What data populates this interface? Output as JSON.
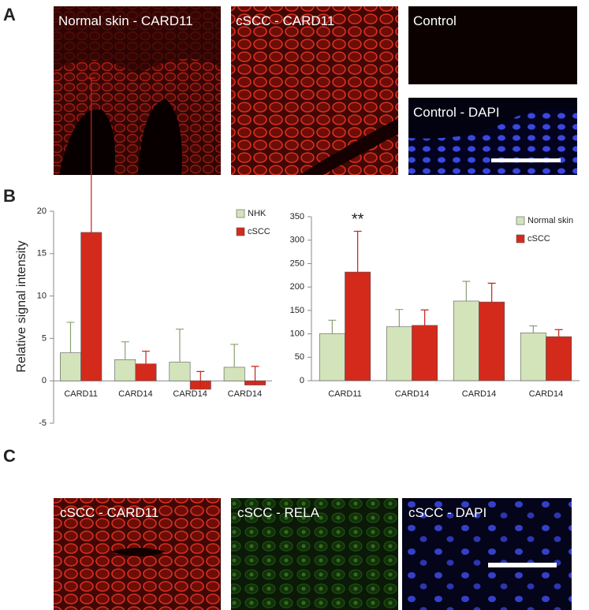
{
  "panel_labels": [
    "A",
    "B",
    "C"
  ],
  "images": [
    {
      "caption": "Normal skin - CARD11"
    },
    {
      "caption": "cSCC - CARD11"
    },
    {
      "caption": "Control"
    },
    {
      "caption": "Control - DAPI"
    },
    {
      "caption": "cSCC - CARD11"
    },
    {
      "caption": "cSCC - RELA"
    },
    {
      "caption": "cSCC - DAPI"
    }
  ],
  "chart_data": [
    {
      "type": "bar",
      "ylabel": "Relative signal intensity",
      "categories": [
        "CARD11",
        "CARD14",
        "CARD14",
        "CARD14"
      ],
      "series": [
        {
          "name": "NHK",
          "color": "#d4e4ba",
          "values": [
            3.3,
            2.5,
            2.2,
            1.6
          ],
          "errors": [
            3.6,
            2.1,
            3.9,
            2.7
          ]
        },
        {
          "name": "cSCC",
          "color": "#d42a1c",
          "values": [
            17.5,
            2,
            -1,
            -0.5
          ],
          "errors": [
            18.2,
            1.5,
            2.1,
            2.2
          ]
        }
      ],
      "ylim": [
        -5,
        20
      ],
      "yticks": [
        -5,
        0,
        5,
        10,
        15,
        20
      ]
    },
    {
      "type": "bar",
      "categories": [
        "CARD11",
        "CARD14",
        "CARD14",
        "CARD14"
      ],
      "series": [
        {
          "name": "Normal skin",
          "color": "#d4e4ba",
          "values": [
            100,
            115,
            170,
            102
          ],
          "errors": [
            29,
            37,
            42,
            15
          ]
        },
        {
          "name": "cSCC",
          "color": "#d42a1c",
          "values": [
            232,
            118,
            168,
            94
          ],
          "errors": [
            87,
            33,
            40,
            15
          ]
        }
      ],
      "annotation": "**",
      "ylim": [
        0,
        350
      ],
      "yticks": [
        0,
        50,
        100,
        150,
        200,
        250,
        300,
        350
      ]
    }
  ]
}
